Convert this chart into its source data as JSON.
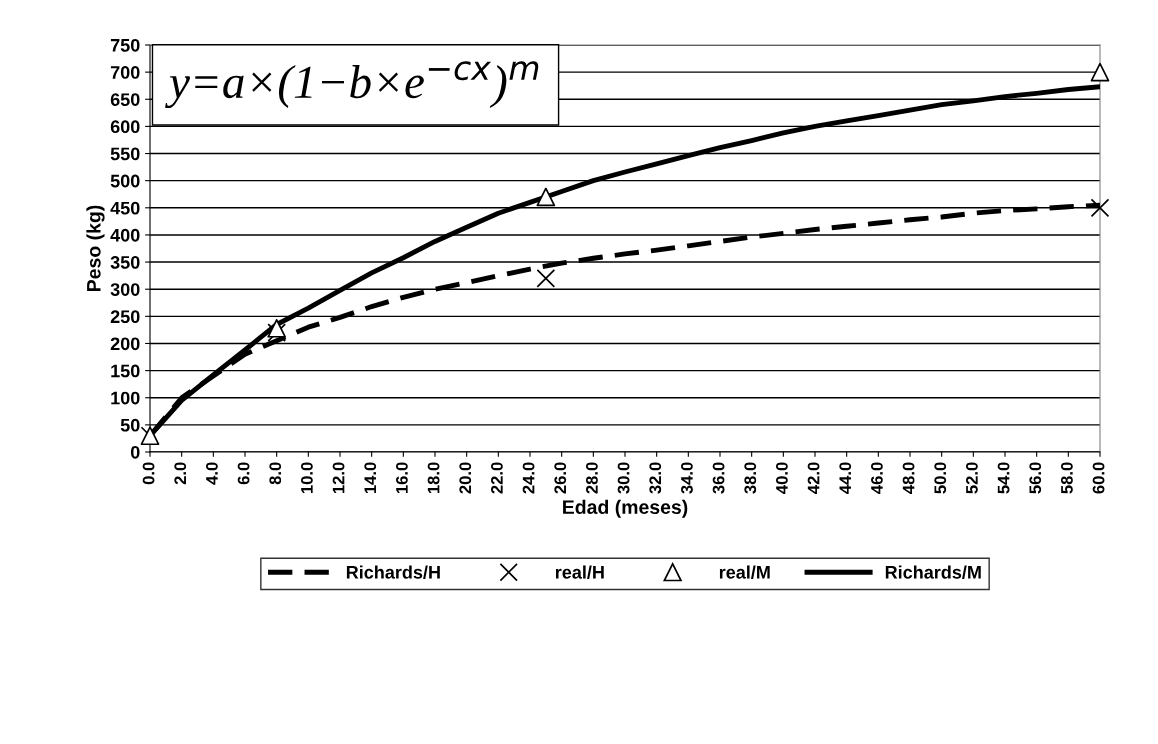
{
  "chart_data": {
    "type": "line",
    "xlabel": "Edad (meses)",
    "ylabel": "Peso (kg)",
    "x": [
      0,
      2,
      4,
      6,
      8,
      10,
      12,
      14,
      16,
      18,
      20,
      22,
      24,
      26,
      28,
      30,
      32,
      34,
      36,
      38,
      40,
      42,
      44,
      46,
      48,
      50,
      52,
      54,
      56,
      58,
      60
    ],
    "series": [
      {
        "name": "Richards/H",
        "color": "#000000",
        "line_style": "dashed",
        "marker": "none",
        "values": [
          30,
          100,
          140,
          180,
          205,
          230,
          248,
          268,
          285,
          300,
          312,
          325,
          337,
          348,
          357,
          365,
          372,
          380,
          388,
          396,
          403,
          410,
          416,
          422,
          428,
          433,
          440,
          445,
          448,
          452,
          455
        ]
      },
      {
        "name": "real/H",
        "type": "scatter",
        "color": "#000000",
        "marker": "cross",
        "x": [
          0,
          8,
          25,
          60
        ],
        "values": [
          30,
          220,
          320,
          450
        ]
      },
      {
        "name": "real/M",
        "type": "scatter",
        "color": "#000000",
        "marker": "triangle",
        "x": [
          0,
          8,
          25,
          60
        ],
        "values": [
          30,
          228,
          470,
          700
        ]
      },
      {
        "name": "Richards/M",
        "color": "#000000",
        "line_style": "solid",
        "marker": "none",
        "values": [
          30,
          95,
          142,
          188,
          235,
          265,
          298,
          330,
          358,
          388,
          414,
          440,
          460,
          480,
          500,
          516,
          531,
          546,
          561,
          574,
          588,
          600,
          610,
          620,
          630,
          640,
          647,
          655,
          661,
          668,
          673
        ]
      }
    ],
    "xlim": [
      0,
      60
    ],
    "xticks": [
      {
        "value": 0,
        "label": "0.0"
      },
      {
        "value": 2,
        "label": "2.0"
      },
      {
        "value": 4,
        "label": "4.0"
      },
      {
        "value": 6,
        "label": "6.0"
      },
      {
        "value": 8,
        "label": "8.0"
      },
      {
        "value": 10,
        "label": "10.0"
      },
      {
        "value": 12,
        "label": "12.0"
      },
      {
        "value": 14,
        "label": "14.0"
      },
      {
        "value": 16,
        "label": "16.0"
      },
      {
        "value": 18,
        "label": "18.0"
      },
      {
        "value": 20,
        "label": "20.0"
      },
      {
        "value": 22,
        "label": "22.0"
      },
      {
        "value": 24,
        "label": "24.0"
      },
      {
        "value": 26,
        "label": "26.0"
      },
      {
        "value": 28,
        "label": "28.0"
      },
      {
        "value": 30,
        "label": "30.0"
      },
      {
        "value": 32,
        "label": "32.0"
      },
      {
        "value": 34,
        "label": "34.0"
      },
      {
        "value": 36,
        "label": "36.0"
      },
      {
        "value": 38,
        "label": "38.0"
      },
      {
        "value": 40,
        "label": "40.0"
      },
      {
        "value": 42,
        "label": "42.0"
      },
      {
        "value": 44,
        "label": "44.0"
      },
      {
        "value": 46,
        "label": "46.0"
      },
      {
        "value": 48,
        "label": "48.0"
      },
      {
        "value": 50,
        "label": "50.0"
      },
      {
        "value": 52,
        "label": "52.0"
      },
      {
        "value": 54,
        "label": "54.0"
      },
      {
        "value": 56,
        "label": "56.0"
      },
      {
        "value": 58,
        "label": "58.0"
      },
      {
        "value": 60,
        "label": "60.0"
      }
    ],
    "ylim": [
      0,
      750
    ],
    "yticks": [
      0,
      50,
      100,
      150,
      200,
      250,
      300,
      350,
      400,
      450,
      500,
      550,
      600,
      650,
      700,
      750
    ],
    "grid": "y",
    "legend": "bottom",
    "annotations": [
      "y=a×(1−b×e$^{−cx}$)$^{m}$"
    ]
  }
}
